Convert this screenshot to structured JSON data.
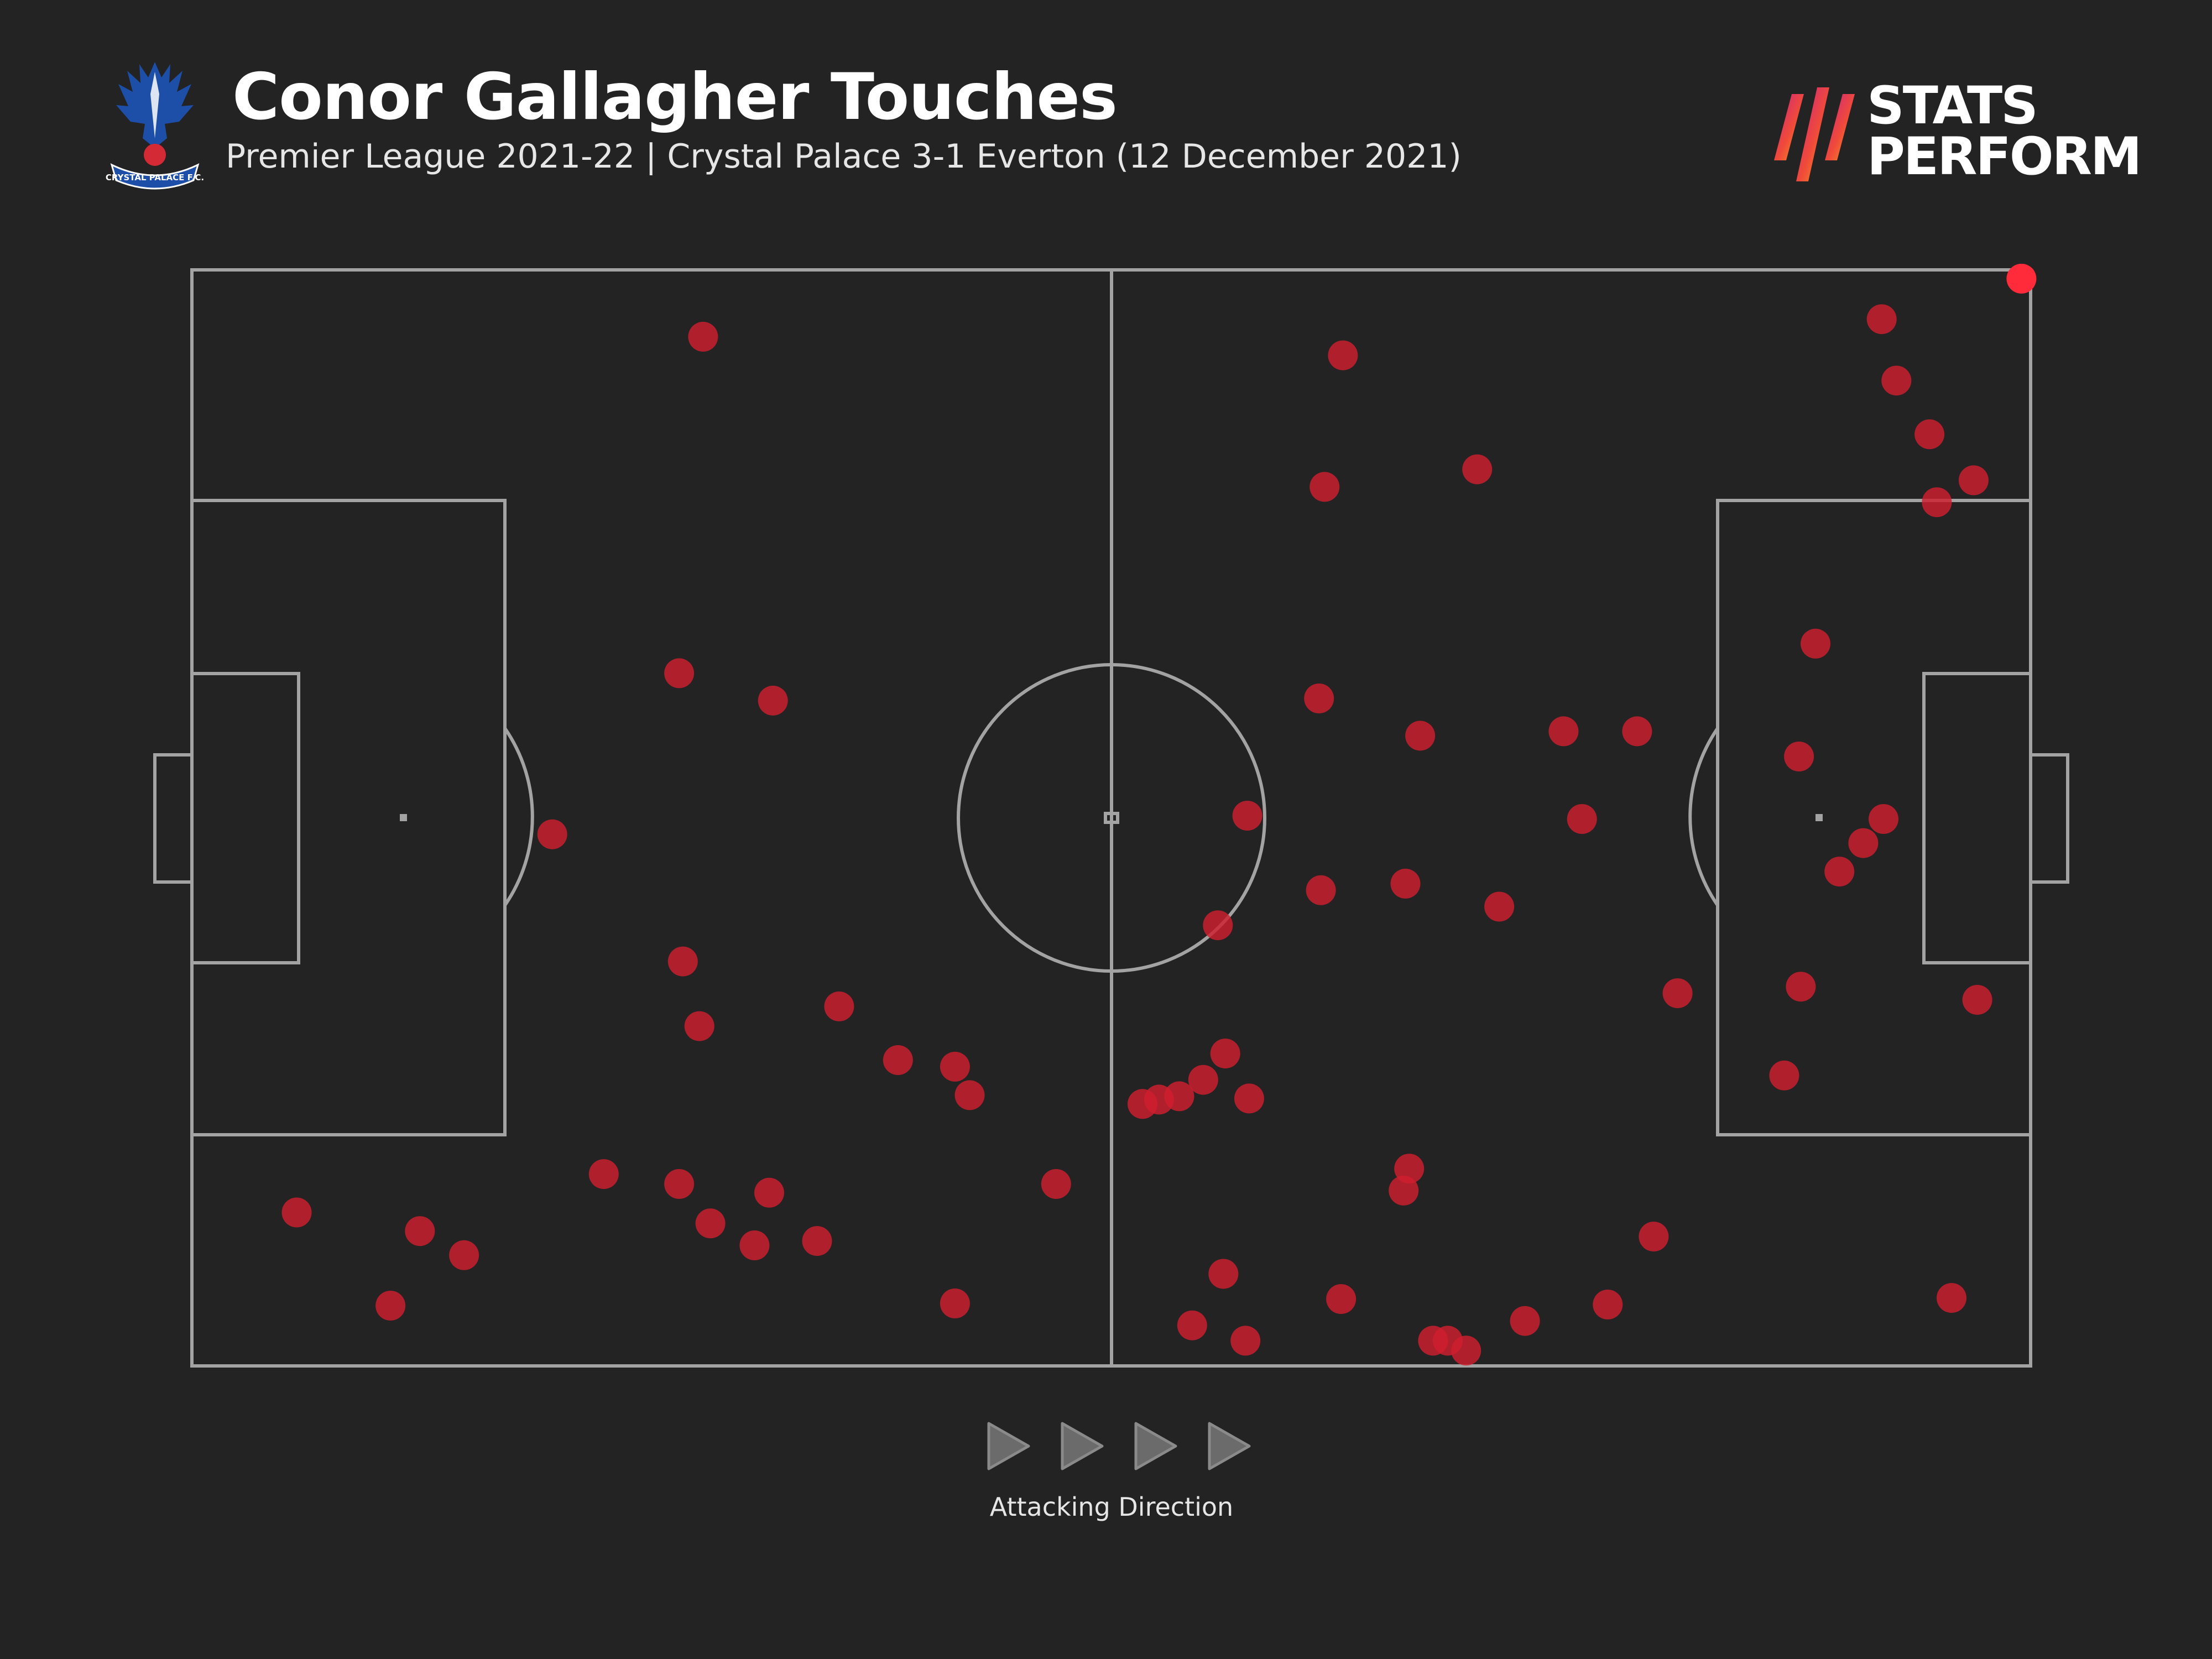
{
  "header": {
    "title": "Conor Gallagher Touches",
    "subtitle": "Premier League 2021-22 | Crystal Palace 3-1 Everton (12 December 2021)"
  },
  "crest": {
    "text": "CRYSTAL PALACE F.C.",
    "icon": "eagle-crest-icon"
  },
  "brand": {
    "line1": "STATS",
    "line2": "PERFORM",
    "icon": "stats-perform-stripes-icon"
  },
  "direction": {
    "label": "Attacking Direction",
    "icon": "play-triangle-icon",
    "count": 4
  },
  "colors": {
    "background": "#232323",
    "pitch_lines": "#a3a3a3",
    "touch": "#cf1f2e",
    "touch_highlight": "#ff2a3a",
    "brand_gradient": [
      "#c8208a",
      "#f04a3a",
      "#f7a21b"
    ]
  },
  "chart_data": {
    "type": "scatter",
    "title": "Conor Gallagher Touches",
    "xlim": [
      0,
      100
    ],
    "ylim": [
      0,
      100
    ],
    "x_direction": "left-to-right attacking",
    "points": [
      [
        27.8,
        93.9
      ],
      [
        26.5,
        63.2
      ],
      [
        31.6,
        60.7
      ],
      [
        19.6,
        48.5
      ],
      [
        26.7,
        36.9
      ],
      [
        27.6,
        31.0
      ],
      [
        35.2,
        32.8
      ],
      [
        38.4,
        27.9
      ],
      [
        42.3,
        24.7
      ],
      [
        41.5,
        27.3
      ],
      [
        5.7,
        14.0
      ],
      [
        12.4,
        12.3
      ],
      [
        14.8,
        10.1
      ],
      [
        22.4,
        17.5
      ],
      [
        26.5,
        16.6
      ],
      [
        28.2,
        13.0
      ],
      [
        31.4,
        15.8
      ],
      [
        30.6,
        11.0
      ],
      [
        34.0,
        11.4
      ],
      [
        47.0,
        16.6
      ],
      [
        41.5,
        5.7
      ],
      [
        10.8,
        5.5
      ],
      [
        62.6,
        92.2
      ],
      [
        61.6,
        80.2
      ],
      [
        69.9,
        81.8
      ],
      [
        91.9,
        95.5
      ],
      [
        92.7,
        89.9
      ],
      [
        94.5,
        85.0
      ],
      [
        96.9,
        80.8
      ],
      [
        94.9,
        78.8
      ],
      [
        88.3,
        65.9
      ],
      [
        61.3,
        60.9
      ],
      [
        66.8,
        57.5
      ],
      [
        74.6,
        57.9
      ],
      [
        78.6,
        57.9
      ],
      [
        87.4,
        55.6
      ],
      [
        57.4,
        50.2
      ],
      [
        75.6,
        49.9
      ],
      [
        92.0,
        49.9
      ],
      [
        90.9,
        47.7
      ],
      [
        89.6,
        45.1
      ],
      [
        61.4,
        43.4
      ],
      [
        66.0,
        44.0
      ],
      [
        71.1,
        41.9
      ],
      [
        55.8,
        40.2
      ],
      [
        80.8,
        34.0
      ],
      [
        87.5,
        34.6
      ],
      [
        97.1,
        33.4
      ],
      [
        56.2,
        28.5
      ],
      [
        55.0,
        26.1
      ],
      [
        53.7,
        24.6
      ],
      [
        57.5,
        24.4
      ],
      [
        51.7,
        23.9
      ],
      [
        52.6,
        24.3
      ],
      [
        86.6,
        26.5
      ],
      [
        66.2,
        18.0
      ],
      [
        65.9,
        16.0
      ],
      [
        79.5,
        11.8
      ],
      [
        56.1,
        8.4
      ],
      [
        62.5,
        6.1
      ],
      [
        54.4,
        3.7
      ],
      [
        57.3,
        2.3
      ],
      [
        67.5,
        2.3
      ],
      [
        68.3,
        2.3
      ],
      [
        69.3,
        1.4
      ],
      [
        72.5,
        4.1
      ],
      [
        77.0,
        5.6
      ],
      [
        95.7,
        6.2
      ],
      [
        99.5,
        99.2
      ]
    ],
    "highlight_index": 68
  }
}
